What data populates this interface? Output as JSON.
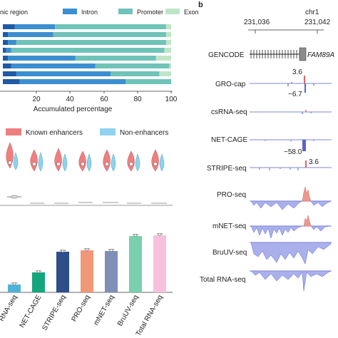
{
  "panel_b": {
    "label": "b",
    "chrom": "chr1",
    "coord_left": "231,036",
    "coord_right": "231,042",
    "gene_name": "FAM89A",
    "annotations": {
      "gro_pos": "3.6",
      "gro_neg": "−6.7",
      "net_neg": "−58.0",
      "stripe_pos": "3.6"
    },
    "tracks": [
      {
        "label": "GENCODE"
      },
      {
        "label": "GRO-cap"
      },
      {
        "label": "csRNA-seq"
      },
      {
        "label": "NET-CAGE"
      },
      {
        "label": "STRIPE-seq"
      },
      {
        "label": "PRO-seq"
      },
      {
        "label": "mNET-seq"
      },
      {
        "label": "BruUV-seq"
      },
      {
        "label": "Total RNA-seq"
      }
    ]
  },
  "legend_top": {
    "items": [
      "nic region",
      "Intron",
      "Promoter",
      "Exon"
    ],
    "colors": [
      "#1f5aa6",
      "#3b8fd0",
      "#6fc3b8",
      "#bfe5c8"
    ]
  },
  "legend_mid": {
    "items": [
      "Known enhancers",
      "Non-enhancers"
    ],
    "colors": [
      "#ef7f7f",
      "#8fd3ef"
    ]
  },
  "chart_data": [
    {
      "type": "bar",
      "orientation": "horizontal-stacked",
      "xlabel": "Accumulated percentage",
      "xlim": [
        0,
        100
      ],
      "xticks": [
        "20",
        "40",
        "60",
        "80",
        "100"
      ],
      "series_names": [
        "nic region",
        "Intron",
        "Promoter",
        "Exon"
      ],
      "rows": [
        [
          7,
          24,
          66,
          3
        ],
        [
          3,
          27,
          67,
          3
        ],
        [
          3,
          5,
          89,
          3
        ],
        [
          2,
          3,
          91,
          4
        ],
        [
          3,
          40,
          48,
          9
        ],
        [
          5,
          50,
          44,
          1
        ],
        [
          8,
          56,
          29,
          7
        ],
        [
          10,
          63,
          27,
          0
        ]
      ]
    },
    {
      "type": "bar",
      "categories": [
        "RNA-seq",
        "NET-CAGE",
        "STRIPE-seq",
        "PRO-seq",
        "mNET-seq",
        "BruUV-seq",
        "Total RNA-seq"
      ],
      "values": [
        0.11,
        0.28,
        0.57,
        0.59,
        0.58,
        0.79,
        0.8
      ],
      "colors": [
        "#4fb3d9",
        "#13a67c",
        "#2f4e8a",
        "#f19777",
        "#7f8fb8",
        "#79cfae",
        "#f7c1dd"
      ],
      "ylim": [
        0,
        1
      ]
    }
  ]
}
